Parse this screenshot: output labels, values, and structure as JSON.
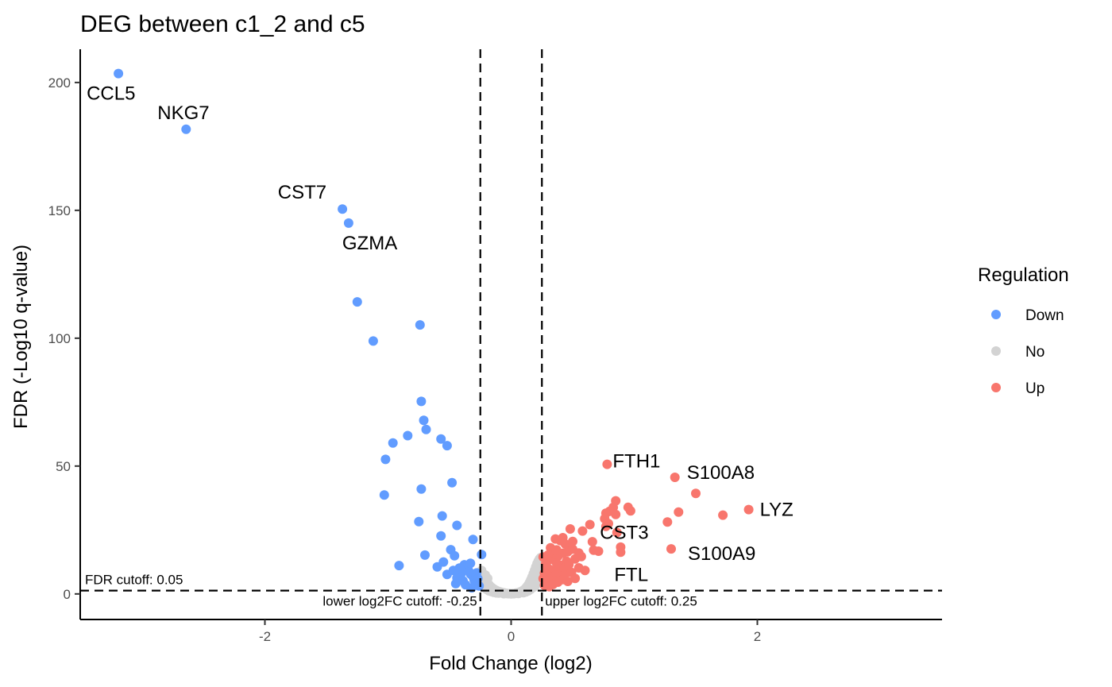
{
  "chart_data": {
    "type": "scatter",
    "title": "DEG between c1_2 and c5",
    "xlabel": "Fold Change (log2)",
    "ylabel": "FDR (-Log10 q-value)",
    "xlim": [
      -3.5,
      3.5
    ],
    "ylim": [
      -10,
      213
    ],
    "xticks": [
      {
        "value": -2,
        "label": "-2"
      },
      {
        "value": 0,
        "label": "0"
      },
      {
        "value": 2,
        "label": "2"
      }
    ],
    "yticks": [
      {
        "value": 0,
        "label": "0"
      },
      {
        "value": 50,
        "label": "50"
      },
      {
        "value": 100,
        "label": "100"
      },
      {
        "value": 150,
        "label": "150"
      },
      {
        "value": 200,
        "label": "200"
      }
    ],
    "grid": false,
    "cutoffs": {
      "fdr": {
        "y": 1.3,
        "label": "FDR cutoff: 0.05"
      },
      "lower_fc": {
        "x": -0.25,
        "label": "lower log2FC cutoff: -0.25"
      },
      "upper_fc": {
        "x": 0.25,
        "label": "upper log2FC cutoff: 0.25"
      }
    },
    "legend": {
      "title": "Regulation",
      "position": "right",
      "entries": [
        {
          "name": "Down",
          "color": "#619CFF"
        },
        {
          "name": "No",
          "color": "#D3D3D3"
        },
        {
          "name": "Up",
          "color": "#F8766D"
        }
      ]
    },
    "series": [
      {
        "name": "Down",
        "color": "#619CFF",
        "points": [
          [
            -3.19,
            203.5
          ],
          [
            -2.64,
            181.7
          ],
          [
            -1.37,
            150.5
          ],
          [
            -1.32,
            145.0
          ],
          [
            -1.25,
            114.2
          ],
          [
            -1.12,
            98.9
          ],
          [
            -0.74,
            105.2
          ],
          [
            -0.73,
            75.3
          ],
          [
            -0.71,
            67.9
          ],
          [
            -0.69,
            64.3
          ],
          [
            -0.57,
            60.6
          ],
          [
            -0.52,
            58.0
          ],
          [
            -0.96,
            59.0
          ],
          [
            -0.84,
            61.9
          ],
          [
            -1.02,
            52.6
          ],
          [
            -0.48,
            43.5
          ],
          [
            -0.73,
            41.0
          ],
          [
            -1.03,
            38.7
          ],
          [
            -0.56,
            30.5
          ],
          [
            -0.75,
            28.3
          ],
          [
            -0.44,
            26.8
          ],
          [
            -0.57,
            22.7
          ],
          [
            -0.31,
            21.3
          ],
          [
            -0.7,
            15.2
          ],
          [
            -0.49,
            17.3
          ],
          [
            -0.24,
            15.4
          ],
          [
            -0.46,
            14.9
          ],
          [
            -0.91,
            11.1
          ],
          [
            -0.6,
            10.6
          ],
          [
            -0.55,
            12.5
          ],
          [
            -0.52,
            7.6
          ],
          [
            -0.45,
            4.0
          ],
          [
            -0.32,
            2.4
          ],
          [
            -0.38,
            11.4
          ],
          [
            -0.36,
            10.5
          ],
          [
            -0.35,
            9.5
          ],
          [
            -0.34,
            8.6
          ],
          [
            -0.33,
            7.8
          ],
          [
            -0.31,
            6.7
          ],
          [
            -0.3,
            5.4
          ],
          [
            -0.29,
            4.3
          ],
          [
            -0.4,
            8.9
          ],
          [
            -0.41,
            7.5
          ],
          [
            -0.42,
            10.1
          ],
          [
            -0.44,
            6.2
          ],
          [
            -0.47,
            9.2
          ],
          [
            -0.39,
            5.1
          ],
          [
            -0.37,
            3.6
          ],
          [
            -0.33,
            12.0
          ],
          [
            -0.28,
            8.2
          ],
          [
            -0.27,
            6.0
          ],
          [
            -0.26,
            3.1
          ]
        ]
      },
      {
        "name": "No",
        "color": "#D3D3D3",
        "points": [
          [
            -0.24,
            9.2
          ],
          [
            -0.23,
            8.0
          ],
          [
            -0.22,
            6.8
          ],
          [
            -0.21,
            5.7
          ],
          [
            -0.2,
            4.9
          ],
          [
            -0.19,
            4.2
          ],
          [
            -0.18,
            3.6
          ],
          [
            -0.17,
            3.0
          ],
          [
            -0.16,
            2.6
          ],
          [
            -0.15,
            2.2
          ],
          [
            -0.14,
            1.9
          ],
          [
            -0.13,
            1.6
          ],
          [
            -0.12,
            1.3
          ],
          [
            -0.11,
            1.1
          ],
          [
            -0.1,
            0.9
          ],
          [
            -0.09,
            0.8
          ],
          [
            -0.08,
            0.6
          ],
          [
            -0.07,
            0.5
          ],
          [
            -0.06,
            0.4
          ],
          [
            -0.05,
            0.3
          ],
          [
            -0.04,
            0.2
          ],
          [
            -0.03,
            0.2
          ],
          [
            -0.02,
            0.1
          ],
          [
            -0.01,
            0.1
          ],
          [
            0.0,
            0.0
          ],
          [
            0.01,
            0.1
          ],
          [
            0.02,
            0.1
          ],
          [
            0.03,
            0.2
          ],
          [
            0.04,
            0.3
          ],
          [
            0.05,
            0.4
          ],
          [
            0.06,
            0.5
          ],
          [
            0.07,
            0.7
          ],
          [
            0.08,
            0.9
          ],
          [
            0.09,
            1.1
          ],
          [
            0.1,
            1.4
          ],
          [
            0.11,
            1.8
          ],
          [
            0.12,
            2.3
          ],
          [
            0.13,
            2.9
          ],
          [
            0.14,
            3.6
          ],
          [
            0.15,
            4.5
          ],
          [
            0.16,
            5.5
          ],
          [
            0.17,
            6.6
          ],
          [
            0.18,
            7.9
          ],
          [
            0.19,
            9.2
          ],
          [
            0.2,
            10.5
          ],
          [
            0.21,
            11.8
          ],
          [
            0.22,
            12.8
          ],
          [
            0.23,
            13.6
          ],
          [
            0.24,
            14.2
          ],
          [
            -0.22,
            2.5
          ],
          [
            -0.18,
            1.2
          ],
          [
            -0.14,
            0.6
          ],
          [
            -0.1,
            0.3
          ],
          [
            -0.06,
            0.1
          ],
          [
            0.06,
            0.2
          ],
          [
            0.1,
            0.5
          ],
          [
            0.14,
            1.2
          ],
          [
            0.18,
            2.6
          ],
          [
            0.22,
            4.8
          ],
          [
            0.2,
            3.4
          ],
          [
            0.23,
            6.9
          ],
          [
            0.24,
            9.5
          ],
          [
            0.16,
            1.9
          ],
          [
            0.12,
            0.8
          ],
          [
            -0.2,
            1.8
          ],
          [
            -0.16,
            0.9
          ],
          [
            -0.12,
            0.4
          ],
          [
            -0.24,
            4.1
          ],
          [
            -0.23,
            3.0
          ],
          [
            0.19,
            5.8
          ],
          [
            0.21,
            8.3
          ],
          [
            0.17,
            3.2
          ],
          [
            -0.21,
            7.4
          ],
          [
            -0.19,
            6.1
          ]
        ]
      },
      {
        "name": "Up",
        "color": "#F8766D",
        "points": [
          [
            0.78,
            50.7
          ],
          [
            1.33,
            45.6
          ],
          [
            1.5,
            39.3
          ],
          [
            1.93,
            33.0
          ],
          [
            1.72,
            30.8
          ],
          [
            1.36,
            32.0
          ],
          [
            1.27,
            28.1
          ],
          [
            0.85,
            36.4
          ],
          [
            0.83,
            33.9
          ],
          [
            0.8,
            32.3
          ],
          [
            0.77,
            31.6
          ],
          [
            0.76,
            29.4
          ],
          [
            0.79,
            27.5
          ],
          [
            0.85,
            31.1
          ],
          [
            0.95,
            33.9
          ],
          [
            0.97,
            32.5
          ],
          [
            0.64,
            27.1
          ],
          [
            0.77,
            26.4
          ],
          [
            0.86,
            24.0
          ],
          [
            0.58,
            24.6
          ],
          [
            0.48,
            25.4
          ],
          [
            0.66,
            20.4
          ],
          [
            0.89,
            18.3
          ],
          [
            0.67,
            17.1
          ],
          [
            0.89,
            16.3
          ],
          [
            1.3,
            17.6
          ],
          [
            0.71,
            16.7
          ],
          [
            0.57,
            14.6
          ],
          [
            0.36,
            21.5
          ],
          [
            0.4,
            20.8
          ],
          [
            0.44,
            19.5
          ],
          [
            0.48,
            18.9
          ],
          [
            0.32,
            18.0
          ],
          [
            0.35,
            16.8
          ],
          [
            0.42,
            15.9
          ],
          [
            0.46,
            16.5
          ],
          [
            0.5,
            17.5
          ],
          [
            0.38,
            14.7
          ],
          [
            0.33,
            13.5
          ],
          [
            0.3,
            15.2
          ],
          [
            0.29,
            12.6
          ],
          [
            0.37,
            12.0
          ],
          [
            0.41,
            11.2
          ],
          [
            0.45,
            12.8
          ],
          [
            0.52,
            13.7
          ],
          [
            0.28,
            10.6
          ],
          [
            0.31,
            9.7
          ],
          [
            0.34,
            8.9
          ],
          [
            0.39,
            9.3
          ],
          [
            0.43,
            10.1
          ],
          [
            0.47,
            11.5
          ],
          [
            0.55,
            10.2
          ],
          [
            0.6,
            9.2
          ],
          [
            0.27,
            8.1
          ],
          [
            0.3,
            7.2
          ],
          [
            0.33,
            6.5
          ],
          [
            0.36,
            7.4
          ],
          [
            0.4,
            6.8
          ],
          [
            0.44,
            7.9
          ],
          [
            0.49,
            8.4
          ],
          [
            0.26,
            6.0
          ],
          [
            0.29,
            5.1
          ],
          [
            0.32,
            4.3
          ],
          [
            0.35,
            5.3
          ],
          [
            0.38,
            4.6
          ],
          [
            0.42,
            5.6
          ],
          [
            0.46,
            4.9
          ],
          [
            0.52,
            6.1
          ],
          [
            0.27,
            3.4
          ],
          [
            0.31,
            2.8
          ],
          [
            0.34,
            3.7
          ],
          [
            0.3,
            13.1
          ],
          [
            0.26,
            14.4
          ],
          [
            0.28,
            11.7
          ],
          [
            0.37,
            17.2
          ],
          [
            0.42,
            22.0
          ],
          [
            0.5,
            20.5
          ],
          [
            0.55,
            16.0
          ]
        ]
      }
    ],
    "labels": [
      {
        "text": "CCL5",
        "x": -3.19,
        "y": 203.5
      },
      {
        "text": "NKG7",
        "x": -2.64,
        "y": 181.7
      },
      {
        "text": "CST7",
        "x": -1.37,
        "y": 150.5
      },
      {
        "text": "GZMA",
        "x": -1.32,
        "y": 145.0
      },
      {
        "text": "FTH1",
        "x": 0.78,
        "y": 50.7
      },
      {
        "text": "S100A8",
        "x": 1.33,
        "y": 45.6
      },
      {
        "text": "LYZ",
        "x": 1.93,
        "y": 33.0
      },
      {
        "text": "CST3",
        "x": 0.85,
        "y": 24.0
      },
      {
        "text": "S100A9",
        "x": 1.3,
        "y": 17.6
      },
      {
        "text": "FTL",
        "x": 0.89,
        "y": 16.3
      }
    ]
  }
}
